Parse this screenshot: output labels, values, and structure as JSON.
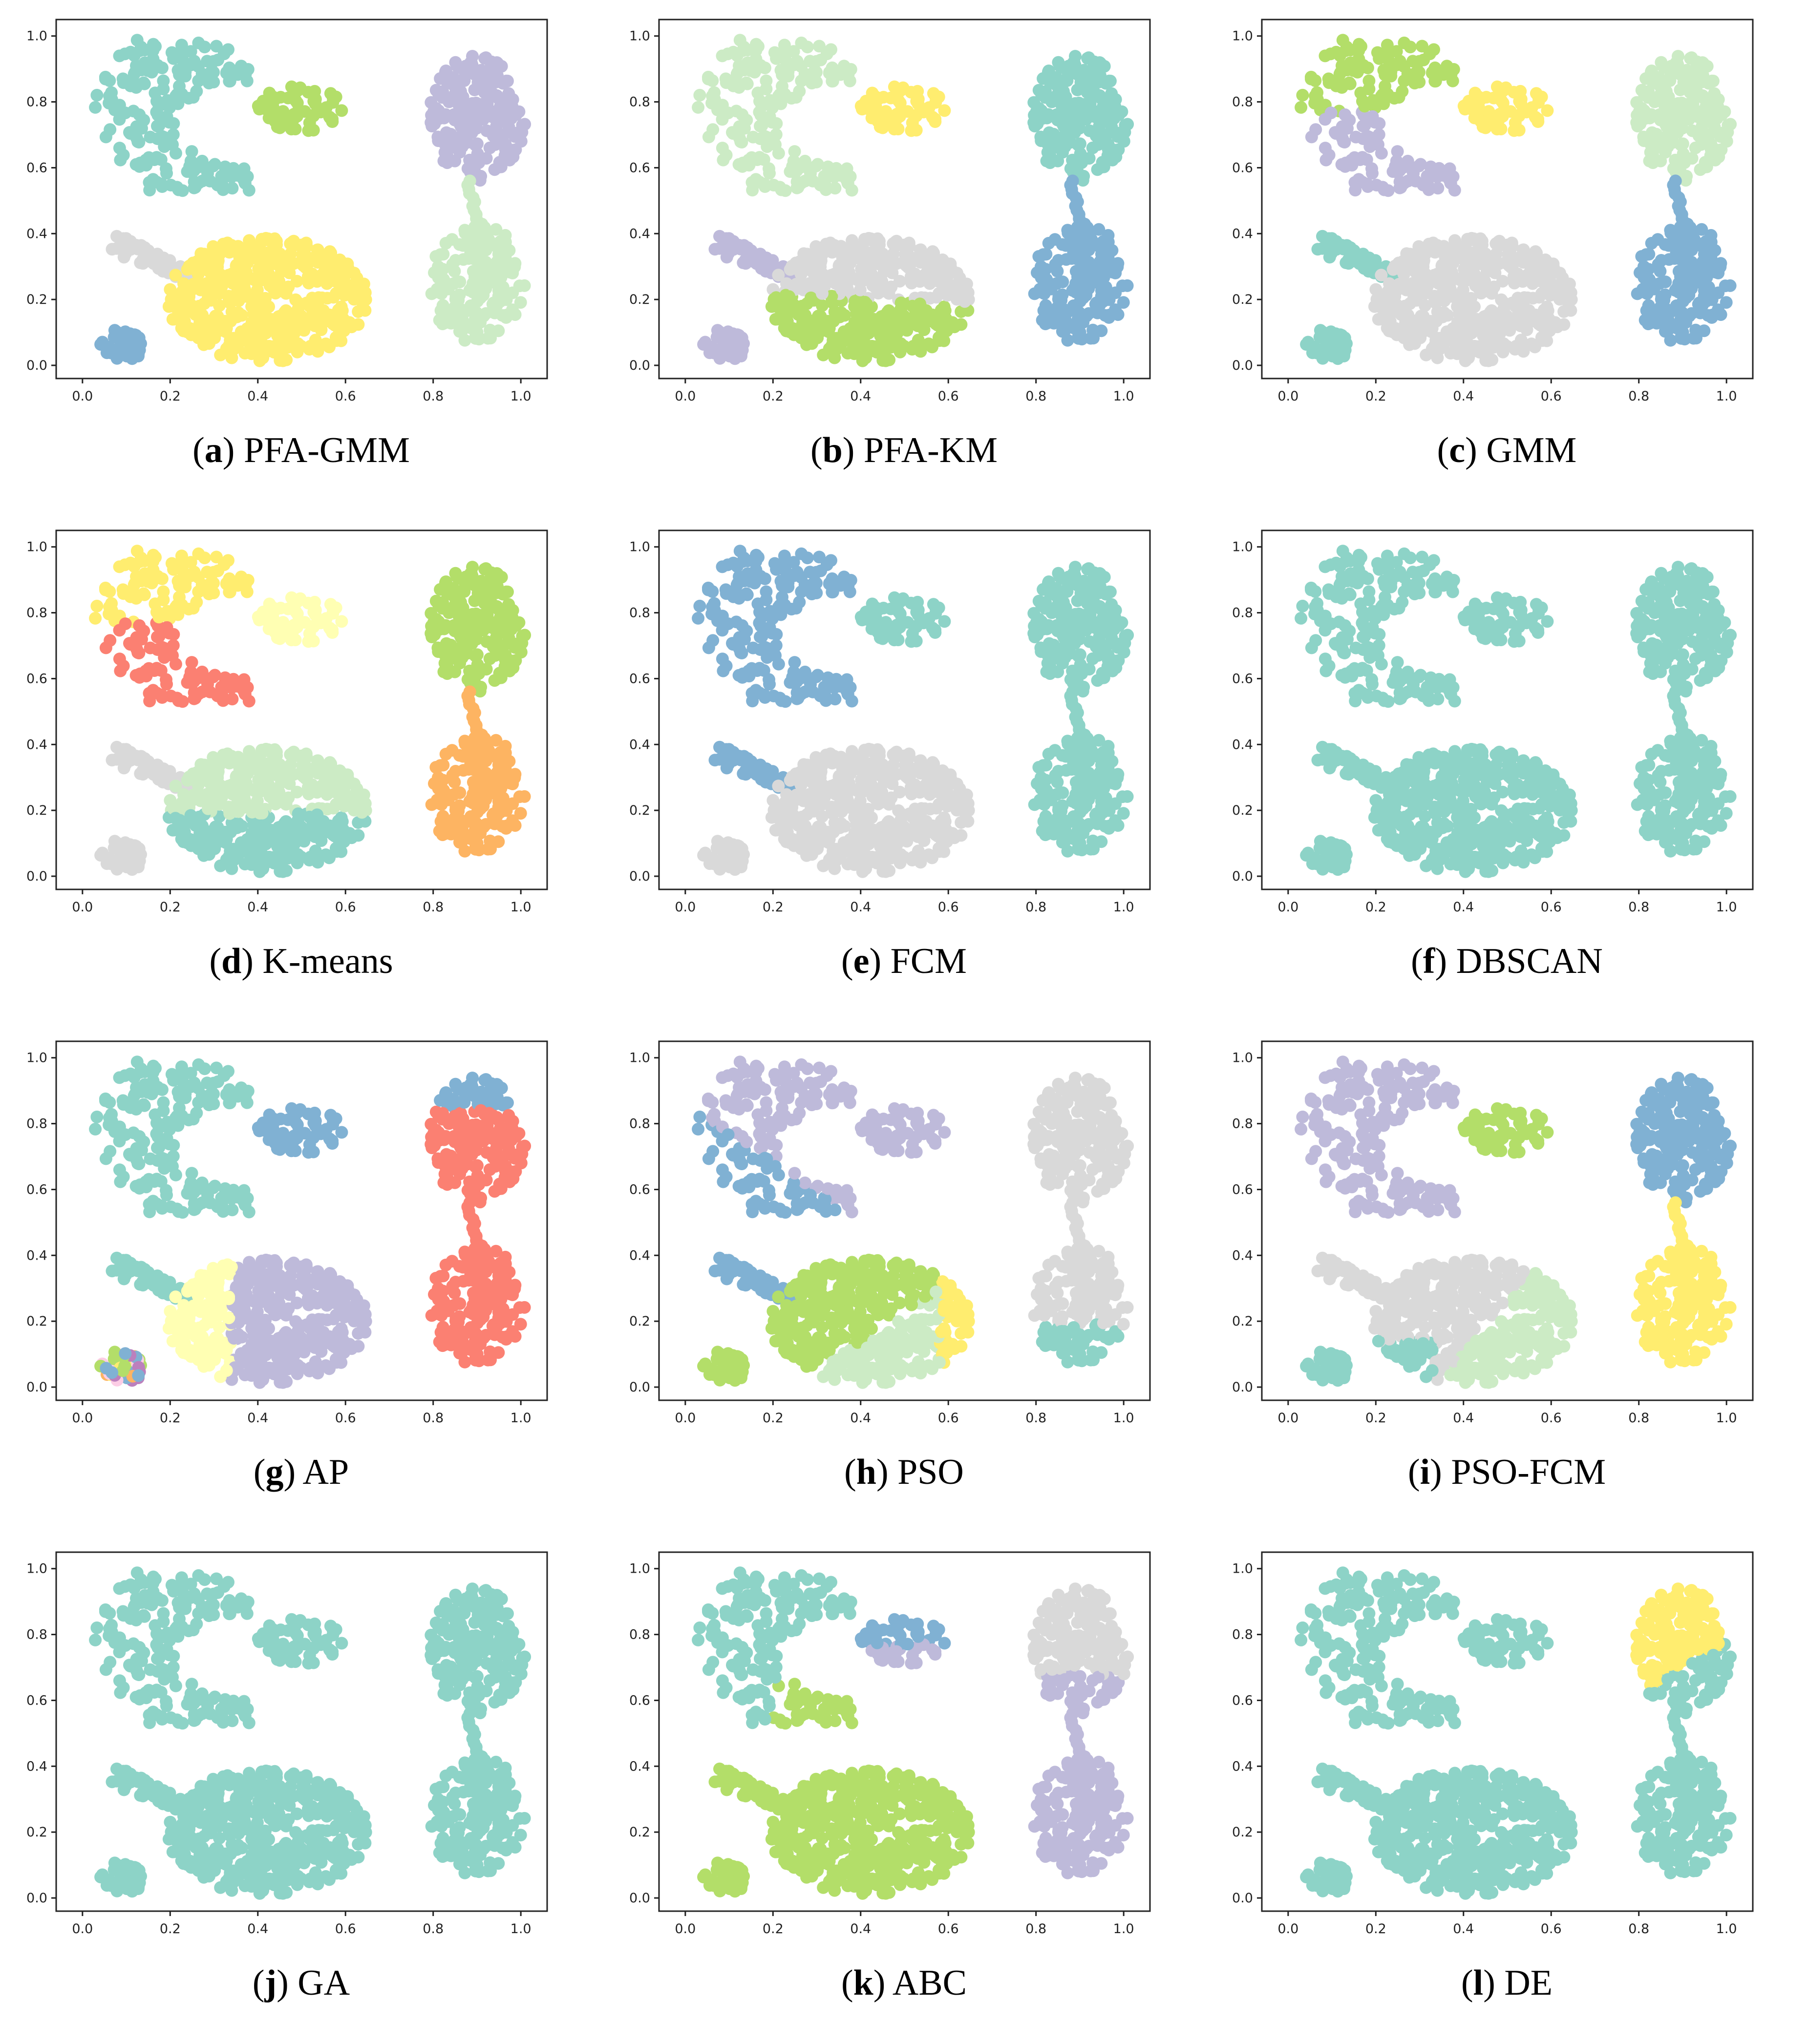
{
  "figure": {
    "panels": [
      {
        "id": "a",
        "letter": "a",
        "method": "PFA-GMM"
      },
      {
        "id": "b",
        "letter": "b",
        "method": "PFA-KM"
      },
      {
        "id": "c",
        "letter": "c",
        "method": "GMM"
      },
      {
        "id": "d",
        "letter": "d",
        "method": "K-means"
      },
      {
        "id": "e",
        "letter": "e",
        "method": "FCM"
      },
      {
        "id": "f",
        "letter": "f",
        "method": "DBSCAN"
      },
      {
        "id": "g",
        "letter": "g",
        "method": "AP"
      },
      {
        "id": "h",
        "letter": "h",
        "method": "PSO"
      },
      {
        "id": "i",
        "letter": "i",
        "method": "PSO-FCM"
      },
      {
        "id": "j",
        "letter": "j",
        "method": "GA"
      },
      {
        "id": "k",
        "letter": "k",
        "method": "ABC"
      },
      {
        "id": "l",
        "letter": "l",
        "method": "DE"
      }
    ]
  },
  "chart_data": {
    "type": "scatter",
    "title": "",
    "xlabel": "",
    "ylabel": "",
    "xlim": [
      -0.06,
      1.06
    ],
    "ylim": [
      -0.04,
      1.05
    ],
    "xticks": [
      "0.0",
      "0.2",
      "0.4",
      "0.6",
      "0.8",
      "1.0"
    ],
    "yticks": [
      "0.0",
      "0.2",
      "0.4",
      "0.6",
      "0.8",
      "1.0"
    ],
    "xtick_values": [
      0,
      0.2,
      0.4,
      0.6,
      0.8,
      1.0
    ],
    "ytick_values": [
      0,
      0.2,
      0.4,
      0.6,
      0.8,
      1.0
    ],
    "palette": {
      "teal": "#8dd3c7",
      "blue": "#80b1d3",
      "yellow": "#ffed6f",
      "lightyellow": "#ffffb3",
      "green": "#b3de69",
      "lightgreen": "#ccebc5",
      "lavender": "#bebada",
      "grey": "#d9d9d9",
      "salmon": "#fb8072",
      "orange": "#fdb462",
      "pink": "#fccde5",
      "purple": "#bc80bd"
    },
    "dataset_groups": [
      {
        "name": "crescent",
        "shape": "crescent",
        "center": [
          0.18,
          0.78
        ],
        "n": 200
      },
      {
        "name": "small-blob",
        "shape": "ellipse",
        "center": [
          0.5,
          0.78
        ],
        "rx": 0.1,
        "ry": 0.07,
        "n": 60
      },
      {
        "name": "top-right-blob",
        "shape": "ellipse",
        "center": [
          0.9,
          0.75
        ],
        "rx": 0.11,
        "ry": 0.19,
        "n": 190
      },
      {
        "name": "bridge",
        "shape": "line",
        "from": [
          0.88,
          0.56
        ],
        "to": [
          0.9,
          0.42
        ],
        "n": 12
      },
      {
        "name": "bottom-right-blob",
        "shape": "ellipse",
        "center": [
          0.9,
          0.25
        ],
        "rx": 0.11,
        "ry": 0.18,
        "n": 170
      },
      {
        "name": "arm",
        "shape": "arm",
        "center": [
          0.13,
          0.36
        ],
        "n": 55
      },
      {
        "name": "big-blob",
        "shape": "ellipse",
        "center": [
          0.42,
          0.2
        ],
        "rx": 0.23,
        "ry": 0.19,
        "n": 460
      },
      {
        "name": "tiny-blob",
        "shape": "ellipse",
        "center": [
          0.09,
          0.06
        ],
        "rx": 0.05,
        "ry": 0.05,
        "n": 45
      }
    ],
    "series_by_panel": {
      "a": {
        "crescent": "teal",
        "small-blob": "green",
        "top-right-blob": "lavender",
        "bridge": "lightgreen",
        "bottom-right-blob": "lightgreen",
        "arm": "grey",
        "big-blob": "yellow",
        "tiny-blob": "blue"
      },
      "b": {
        "crescent": "lightgreen",
        "small-blob": "yellow",
        "top-right-blob": "teal",
        "bridge": "blue",
        "bottom-right-blob": "blue",
        "arm": "lavender",
        "big-blob": "grey|green",
        "tiny-blob": "lavender"
      },
      "c": {
        "crescent": "green|lavender",
        "small-blob": "yellow",
        "top-right-blob": "lightgreen",
        "bridge": "blue",
        "bottom-right-blob": "blue",
        "arm": "teal",
        "big-blob": "grey",
        "tiny-blob": "teal"
      },
      "d": {
        "crescent": "yellow|salmon",
        "small-blob": "lightyellow",
        "top-right-blob": "green",
        "bridge": "orange",
        "bottom-right-blob": "orange",
        "arm": "grey",
        "big-blob": "lightgreen|teal",
        "tiny-blob": "grey"
      },
      "e": {
        "crescent": "blue",
        "small-blob": "teal",
        "top-right-blob": "teal",
        "bridge": "teal",
        "bottom-right-blob": "teal",
        "arm": "blue",
        "big-blob": "grey",
        "tiny-blob": "grey"
      },
      "f": {
        "crescent": "teal",
        "small-blob": "teal",
        "top-right-blob": "teal",
        "bridge": "teal",
        "bottom-right-blob": "teal",
        "arm": "teal",
        "big-blob": "teal",
        "tiny-blob": "teal"
      },
      "g": {
        "crescent": "teal",
        "small-blob": "blue",
        "top-right-blob": "blue|salmon",
        "bridge": "salmon",
        "bottom-right-blob": "salmon",
        "arm": "teal",
        "big-blob": "lightyellow|lavender",
        "tiny-blob": "mixed"
      },
      "h": {
        "crescent": "lavender|blue",
        "small-blob": "lavender",
        "top-right-blob": "grey",
        "bridge": "grey",
        "bottom-right-blob": "grey|teal",
        "arm": "blue",
        "big-blob": "green|lightgreen|yellow",
        "tiny-blob": "green"
      },
      "i": {
        "crescent": "lavender",
        "small-blob": "green",
        "top-right-blob": "blue",
        "bridge": "yellow",
        "bottom-right-blob": "yellow",
        "arm": "grey",
        "big-blob": "grey|lightgreen|teal",
        "tiny-blob": "teal"
      },
      "j": {
        "crescent": "teal",
        "small-blob": "teal",
        "top-right-blob": "teal",
        "bridge": "teal",
        "bottom-right-blob": "teal",
        "arm": "teal",
        "big-blob": "teal",
        "tiny-blob": "teal"
      },
      "k": {
        "crescent": "teal|green",
        "small-blob": "blue|lavender",
        "top-right-blob": "grey|lavender",
        "bridge": "lavender",
        "bottom-right-blob": "lavender",
        "arm": "green",
        "big-blob": "green",
        "tiny-blob": "green"
      },
      "l": {
        "crescent": "teal",
        "small-blob": "teal",
        "top-right-blob": "yellow|teal",
        "bridge": "teal",
        "bottom-right-blob": "teal",
        "arm": "teal",
        "big-blob": "teal",
        "tiny-blob": "teal"
      }
    }
  }
}
